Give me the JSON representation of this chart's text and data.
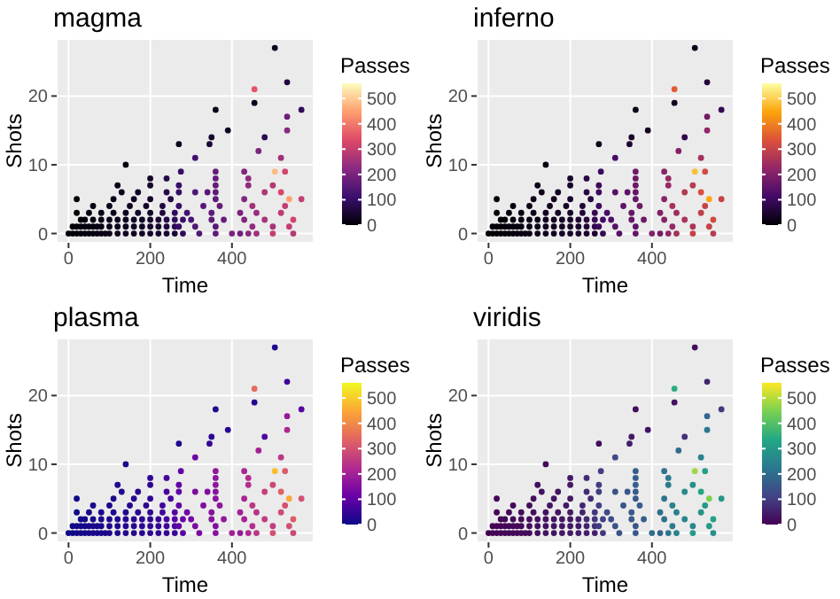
{
  "chart_data": [
    {
      "type": "scatter",
      "title": "magma",
      "xlabel": "Time",
      "ylabel": "Shots",
      "clabel": "Passes",
      "marker": "circle",
      "grid": true,
      "xlim": [
        -29,
        600
      ],
      "ylim": [
        -1.35,
        28.3
      ],
      "xticks": [
        0,
        200,
        400
      ],
      "yticks": [
        0,
        10,
        20
      ],
      "clim": [
        0,
        560
      ],
      "cticks": [
        0,
        100,
        200,
        300,
        400,
        500
      ],
      "x": [
        0,
        10,
        20,
        30,
        40,
        50,
        60,
        70,
        80,
        90,
        100,
        120,
        140,
        160,
        180,
        200,
        220,
        240,
        260,
        280,
        320,
        360,
        400,
        420,
        440,
        460,
        500,
        550,
        10,
        20,
        30,
        40,
        50,
        60,
        70,
        80,
        100,
        120,
        140,
        160,
        180,
        200,
        220,
        240,
        260,
        270,
        310,
        360,
        450,
        500,
        540,
        30,
        40,
        60,
        80,
        100,
        120,
        140,
        160,
        180,
        200,
        220,
        240,
        260,
        280,
        300,
        350,
        380,
        430,
        480,
        550,
        20,
        50,
        80,
        110,
        140,
        170,
        200,
        230,
        260,
        290,
        350,
        420,
        460,
        520,
        60,
        100,
        150,
        190,
        230,
        270,
        330,
        370,
        450,
        530,
        20,
        110,
        160,
        200,
        250,
        360,
        430,
        540,
        570,
        130,
        170,
        240,
        270,
        310,
        340,
        360,
        480,
        520,
        120,
        200,
        270,
        360,
        440,
        500,
        200,
        240,
        360,
        440,
        275,
        360,
        430,
        505,
        530,
        505,
        535,
        455,
        455,
        570,
        360,
        535,
        535,
        390,
        480,
        350,
        345,
        270,
        465,
        310,
        520,
        140
      ],
      "values": [
        0,
        0,
        0,
        0,
        0,
        0,
        0,
        0,
        0,
        0,
        0,
        0,
        0,
        0,
        0,
        0,
        0,
        0,
        0,
        0,
        0,
        0,
        0,
        0,
        0,
        0,
        0,
        0,
        1,
        1,
        1,
        1,
        1,
        1,
        1,
        1,
        1,
        1,
        1,
        1,
        1,
        1,
        1,
        1,
        1,
        1,
        1,
        1,
        1,
        1,
        1,
        2,
        2,
        2,
        2,
        2,
        2,
        2,
        2,
        2,
        2,
        2,
        2,
        2,
        2,
        2,
        2,
        2,
        2,
        2,
        2,
        3,
        3,
        3,
        3,
        3,
        3,
        3,
        3,
        3,
        3,
        3,
        3,
        3,
        3,
        4,
        4,
        4,
        4,
        4,
        4,
        4,
        4,
        4,
        4,
        5,
        5,
        5,
        5,
        5,
        5,
        5,
        5,
        5,
        6,
        6,
        6,
        6,
        6,
        6,
        6,
        6,
        6,
        7,
        7,
        7,
        7,
        7,
        7,
        8,
        8,
        8,
        8,
        9,
        9,
        9,
        9,
        9,
        27,
        22,
        21,
        19,
        18,
        18,
        17,
        15,
        15,
        14,
        14,
        13,
        13,
        12,
        11,
        11,
        10
      ],
      "cvalues": [
        0,
        2,
        4,
        6,
        8,
        10,
        12,
        14,
        16,
        18,
        20,
        24,
        28,
        32,
        36,
        40,
        44,
        48,
        52,
        90,
        140,
        160,
        200,
        180,
        220,
        250,
        300,
        280,
        2,
        4,
        6,
        8,
        10,
        12,
        14,
        16,
        20,
        24,
        28,
        32,
        36,
        40,
        44,
        60,
        80,
        100,
        140,
        150,
        230,
        260,
        300,
        6,
        8,
        12,
        16,
        20,
        24,
        28,
        32,
        36,
        40,
        50,
        70,
        90,
        110,
        130,
        160,
        170,
        210,
        260,
        320,
        4,
        10,
        16,
        22,
        28,
        34,
        40,
        60,
        90,
        120,
        160,
        200,
        240,
        290,
        12,
        20,
        30,
        38,
        60,
        100,
        150,
        170,
        250,
        300,
        4,
        22,
        32,
        40,
        70,
        160,
        210,
        450,
        300,
        26,
        34,
        70,
        100,
        140,
        150,
        160,
        270,
        330,
        24,
        40,
        100,
        170,
        230,
        280,
        40,
        70,
        170,
        230,
        100,
        170,
        210,
        480,
        320,
        20,
        60,
        350,
        30,
        90,
        20,
        180,
        220,
        30,
        80,
        40,
        50,
        20,
        200,
        120,
        250,
        10
      ]
    },
    {
      "type": "scatter",
      "title": "inferno",
      "xlabel": "Time",
      "ylabel": "Shots",
      "clabel": "Passes",
      "marker": "circle",
      "grid": true,
      "xlim": [
        -29,
        600
      ],
      "ylim": [
        -1.35,
        28.3
      ],
      "xticks": [
        0,
        200,
        400
      ],
      "yticks": [
        0,
        10,
        20
      ],
      "clim": [
        0,
        560
      ],
      "cticks": [
        0,
        100,
        200,
        300,
        400,
        500
      ],
      "x": [
        0,
        10,
        20,
        30,
        40,
        50,
        60,
        70,
        80,
        90,
        100,
        120,
        140,
        160,
        180,
        200,
        220,
        240,
        260,
        280,
        320,
        360,
        400,
        420,
        440,
        460,
        500,
        550,
        10,
        20,
        30,
        40,
        50,
        60,
        70,
        80,
        100,
        120,
        140,
        160,
        180,
        200,
        220,
        240,
        260,
        270,
        310,
        360,
        450,
        500,
        540,
        30,
        40,
        60,
        80,
        100,
        120,
        140,
        160,
        180,
        200,
        220,
        240,
        260,
        280,
        300,
        350,
        380,
        430,
        480,
        550,
        20,
        50,
        80,
        110,
        140,
        170,
        200,
        230,
        260,
        290,
        350,
        420,
        460,
        520,
        60,
        100,
        150,
        190,
        230,
        270,
        330,
        370,
        450,
        530,
        20,
        110,
        160,
        200,
        250,
        360,
        430,
        540,
        570,
        130,
        170,
        240,
        270,
        310,
        340,
        360,
        480,
        520,
        120,
        200,
        270,
        360,
        440,
        500,
        200,
        240,
        360,
        440,
        275,
        360,
        430,
        505,
        530,
        505,
        535,
        455,
        455,
        570,
        360,
        535,
        535,
        390,
        480,
        350,
        345,
        270,
        465,
        310,
        520,
        140
      ],
      "values": [
        0,
        0,
        0,
        0,
        0,
        0,
        0,
        0,
        0,
        0,
        0,
        0,
        0,
        0,
        0,
        0,
        0,
        0,
        0,
        0,
        0,
        0,
        0,
        0,
        0,
        0,
        0,
        0,
        1,
        1,
        1,
        1,
        1,
        1,
        1,
        1,
        1,
        1,
        1,
        1,
        1,
        1,
        1,
        1,
        1,
        1,
        1,
        1,
        1,
        1,
        1,
        2,
        2,
        2,
        2,
        2,
        2,
        2,
        2,
        2,
        2,
        2,
        2,
        2,
        2,
        2,
        2,
        2,
        2,
        2,
        2,
        3,
        3,
        3,
        3,
        3,
        3,
        3,
        3,
        3,
        3,
        3,
        3,
        3,
        3,
        4,
        4,
        4,
        4,
        4,
        4,
        4,
        4,
        4,
        4,
        5,
        5,
        5,
        5,
        5,
        5,
        5,
        5,
        5,
        6,
        6,
        6,
        6,
        6,
        6,
        6,
        6,
        6,
        7,
        7,
        7,
        7,
        7,
        7,
        8,
        8,
        8,
        8,
        9,
        9,
        9,
        9,
        9,
        27,
        22,
        21,
        19,
        18,
        18,
        17,
        15,
        15,
        14,
        14,
        13,
        13,
        12,
        11,
        11,
        10
      ],
      "cvalues": [
        0,
        2,
        4,
        6,
        8,
        10,
        12,
        14,
        16,
        18,
        20,
        24,
        28,
        32,
        36,
        40,
        44,
        48,
        52,
        90,
        140,
        160,
        200,
        180,
        220,
        250,
        300,
        280,
        2,
        4,
        6,
        8,
        10,
        12,
        14,
        16,
        20,
        24,
        28,
        32,
        36,
        40,
        44,
        60,
        80,
        100,
        140,
        150,
        230,
        260,
        300,
        6,
        8,
        12,
        16,
        20,
        24,
        28,
        32,
        36,
        40,
        50,
        70,
        90,
        110,
        130,
        160,
        170,
        210,
        260,
        320,
        4,
        10,
        16,
        22,
        28,
        34,
        40,
        60,
        90,
        120,
        160,
        200,
        240,
        290,
        12,
        20,
        30,
        38,
        60,
        100,
        150,
        170,
        250,
        300,
        4,
        22,
        32,
        40,
        70,
        160,
        210,
        450,
        300,
        26,
        34,
        70,
        100,
        140,
        150,
        160,
        270,
        330,
        24,
        40,
        100,
        170,
        230,
        280,
        40,
        70,
        170,
        230,
        100,
        170,
        210,
        480,
        320,
        20,
        60,
        350,
        30,
        90,
        20,
        180,
        220,
        30,
        80,
        40,
        50,
        20,
        200,
        120,
        250,
        10
      ]
    },
    {
      "type": "scatter",
      "title": "plasma",
      "xlabel": "Time",
      "ylabel": "Shots",
      "clabel": "Passes",
      "marker": "circle",
      "grid": true,
      "xlim": [
        -29,
        600
      ],
      "ylim": [
        -1.35,
        28.3
      ],
      "xticks": [
        0,
        200,
        400
      ],
      "yticks": [
        0,
        10,
        20
      ],
      "clim": [
        0,
        560
      ],
      "cticks": [
        0,
        100,
        200,
        300,
        400,
        500
      ],
      "x": [
        0,
        10,
        20,
        30,
        40,
        50,
        60,
        70,
        80,
        90,
        100,
        120,
        140,
        160,
        180,
        200,
        220,
        240,
        260,
        280,
        320,
        360,
        400,
        420,
        440,
        460,
        500,
        550,
        10,
        20,
        30,
        40,
        50,
        60,
        70,
        80,
        100,
        120,
        140,
        160,
        180,
        200,
        220,
        240,
        260,
        270,
        310,
        360,
        450,
        500,
        540,
        30,
        40,
        60,
        80,
        100,
        120,
        140,
        160,
        180,
        200,
        220,
        240,
        260,
        280,
        300,
        350,
        380,
        430,
        480,
        550,
        20,
        50,
        80,
        110,
        140,
        170,
        200,
        230,
        260,
        290,
        350,
        420,
        460,
        520,
        60,
        100,
        150,
        190,
        230,
        270,
        330,
        370,
        450,
        530,
        20,
        110,
        160,
        200,
        250,
        360,
        430,
        540,
        570,
        130,
        170,
        240,
        270,
        310,
        340,
        360,
        480,
        520,
        120,
        200,
        270,
        360,
        440,
        500,
        200,
        240,
        360,
        440,
        275,
        360,
        430,
        505,
        530,
        505,
        535,
        455,
        455,
        570,
        360,
        535,
        535,
        390,
        480,
        350,
        345,
        270,
        465,
        310,
        520,
        140
      ],
      "values": [
        0,
        0,
        0,
        0,
        0,
        0,
        0,
        0,
        0,
        0,
        0,
        0,
        0,
        0,
        0,
        0,
        0,
        0,
        0,
        0,
        0,
        0,
        0,
        0,
        0,
        0,
        0,
        0,
        1,
        1,
        1,
        1,
        1,
        1,
        1,
        1,
        1,
        1,
        1,
        1,
        1,
        1,
        1,
        1,
        1,
        1,
        1,
        1,
        1,
        1,
        1,
        2,
        2,
        2,
        2,
        2,
        2,
        2,
        2,
        2,
        2,
        2,
        2,
        2,
        2,
        2,
        2,
        2,
        2,
        2,
        2,
        3,
        3,
        3,
        3,
        3,
        3,
        3,
        3,
        3,
        3,
        3,
        3,
        3,
        3,
        4,
        4,
        4,
        4,
        4,
        4,
        4,
        4,
        4,
        4,
        5,
        5,
        5,
        5,
        5,
        5,
        5,
        5,
        5,
        6,
        6,
        6,
        6,
        6,
        6,
        6,
        6,
        6,
        7,
        7,
        7,
        7,
        7,
        7,
        8,
        8,
        8,
        8,
        9,
        9,
        9,
        9,
        9,
        27,
        22,
        21,
        19,
        18,
        18,
        17,
        15,
        15,
        14,
        14,
        13,
        13,
        12,
        11,
        11,
        10
      ],
      "cvalues": [
        0,
        2,
        4,
        6,
        8,
        10,
        12,
        14,
        16,
        18,
        20,
        24,
        28,
        32,
        36,
        40,
        44,
        48,
        52,
        90,
        140,
        160,
        200,
        180,
        220,
        250,
        300,
        280,
        2,
        4,
        6,
        8,
        10,
        12,
        14,
        16,
        20,
        24,
        28,
        32,
        36,
        40,
        44,
        60,
        80,
        100,
        140,
        150,
        230,
        260,
        300,
        6,
        8,
        12,
        16,
        20,
        24,
        28,
        32,
        36,
        40,
        50,
        70,
        90,
        110,
        130,
        160,
        170,
        210,
        260,
        320,
        4,
        10,
        16,
        22,
        28,
        34,
        40,
        60,
        90,
        120,
        160,
        200,
        240,
        290,
        12,
        20,
        30,
        38,
        60,
        100,
        150,
        170,
        250,
        300,
        4,
        22,
        32,
        40,
        70,
        160,
        210,
        450,
        300,
        26,
        34,
        70,
        100,
        140,
        150,
        160,
        270,
        330,
        24,
        40,
        100,
        170,
        230,
        280,
        40,
        70,
        170,
        230,
        100,
        170,
        210,
        480,
        320,
        20,
        60,
        350,
        30,
        90,
        20,
        180,
        220,
        30,
        80,
        40,
        50,
        20,
        200,
        120,
        250,
        10
      ]
    },
    {
      "type": "scatter",
      "title": "viridis",
      "xlabel": "Time",
      "ylabel": "Shots",
      "clabel": "Passes",
      "marker": "circle",
      "grid": true,
      "xlim": [
        -29,
        600
      ],
      "ylim": [
        -1.35,
        28.3
      ],
      "xticks": [
        0,
        200,
        400
      ],
      "yticks": [
        0,
        10,
        20
      ],
      "clim": [
        0,
        560
      ],
      "cticks": [
        0,
        100,
        200,
        300,
        400,
        500
      ],
      "x": [
        0,
        10,
        20,
        30,
        40,
        50,
        60,
        70,
        80,
        90,
        100,
        120,
        140,
        160,
        180,
        200,
        220,
        240,
        260,
        280,
        320,
        360,
        400,
        420,
        440,
        460,
        500,
        550,
        10,
        20,
        30,
        40,
        50,
        60,
        70,
        80,
        100,
        120,
        140,
        160,
        180,
        200,
        220,
        240,
        260,
        270,
        310,
        360,
        450,
        500,
        540,
        30,
        40,
        60,
        80,
        100,
        120,
        140,
        160,
        180,
        200,
        220,
        240,
        260,
        280,
        300,
        350,
        380,
        430,
        480,
        550,
        20,
        50,
        80,
        110,
        140,
        170,
        200,
        230,
        260,
        290,
        350,
        420,
        460,
        520,
        60,
        100,
        150,
        190,
        230,
        270,
        330,
        370,
        450,
        530,
        20,
        110,
        160,
        200,
        250,
        360,
        430,
        540,
        570,
        130,
        170,
        240,
        270,
        310,
        340,
        360,
        480,
        520,
        120,
        200,
        270,
        360,
        440,
        500,
        200,
        240,
        360,
        440,
        275,
        360,
        430,
        505,
        530,
        505,
        535,
        455,
        455,
        570,
        360,
        535,
        535,
        390,
        480,
        350,
        345,
        270,
        465,
        310,
        520,
        140
      ],
      "values": [
        0,
        0,
        0,
        0,
        0,
        0,
        0,
        0,
        0,
        0,
        0,
        0,
        0,
        0,
        0,
        0,
        0,
        0,
        0,
        0,
        0,
        0,
        0,
        0,
        0,
        0,
        0,
        0,
        1,
        1,
        1,
        1,
        1,
        1,
        1,
        1,
        1,
        1,
        1,
        1,
        1,
        1,
        1,
        1,
        1,
        1,
        1,
        1,
        1,
        1,
        1,
        2,
        2,
        2,
        2,
        2,
        2,
        2,
        2,
        2,
        2,
        2,
        2,
        2,
        2,
        2,
        2,
        2,
        2,
        2,
        2,
        3,
        3,
        3,
        3,
        3,
        3,
        3,
        3,
        3,
        3,
        3,
        3,
        3,
        3,
        4,
        4,
        4,
        4,
        4,
        4,
        4,
        4,
        4,
        4,
        5,
        5,
        5,
        5,
        5,
        5,
        5,
        5,
        5,
        6,
        6,
        6,
        6,
        6,
        6,
        6,
        6,
        6,
        7,
        7,
        7,
        7,
        7,
        7,
        8,
        8,
        8,
        8,
        9,
        9,
        9,
        9,
        9,
        27,
        22,
        21,
        19,
        18,
        18,
        17,
        15,
        15,
        14,
        14,
        13,
        13,
        12,
        11,
        11,
        10
      ],
      "cvalues": [
        0,
        2,
        4,
        6,
        8,
        10,
        12,
        14,
        16,
        18,
        20,
        24,
        28,
        32,
        36,
        40,
        44,
        48,
        52,
        90,
        140,
        160,
        200,
        180,
        220,
        250,
        300,
        280,
        2,
        4,
        6,
        8,
        10,
        12,
        14,
        16,
        20,
        24,
        28,
        32,
        36,
        40,
        44,
        60,
        80,
        100,
        140,
        150,
        230,
        260,
        300,
        6,
        8,
        12,
        16,
        20,
        24,
        28,
        32,
        36,
        40,
        50,
        70,
        90,
        110,
        130,
        160,
        170,
        210,
        260,
        320,
        4,
        10,
        16,
        22,
        28,
        34,
        40,
        60,
        90,
        120,
        160,
        200,
        240,
        290,
        12,
        20,
        30,
        38,
        60,
        100,
        150,
        170,
        250,
        300,
        4,
        22,
        32,
        40,
        70,
        160,
        210,
        450,
        300,
        26,
        34,
        70,
        100,
        140,
        150,
        160,
        270,
        330,
        24,
        40,
        100,
        170,
        230,
        280,
        40,
        70,
        170,
        230,
        100,
        170,
        210,
        480,
        320,
        20,
        60,
        350,
        30,
        90,
        20,
        180,
        220,
        30,
        80,
        40,
        50,
        20,
        200,
        120,
        250,
        10
      ]
    }
  ]
}
